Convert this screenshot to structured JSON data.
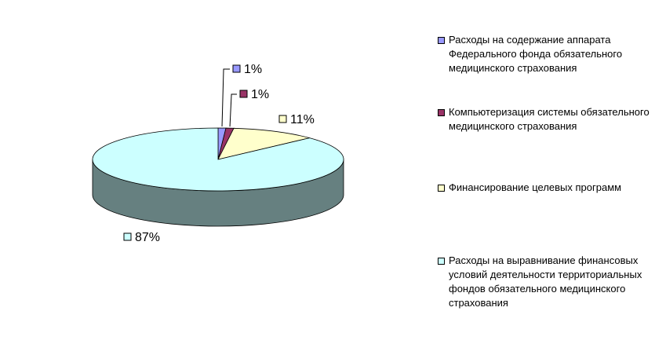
{
  "chart_data": {
    "type": "pie",
    "categories": [
      "Расходы на содержание аппарата Федерального фонда обязательного медицинского страхования",
      "Компьютеризация системы обязательного медицинского страхования",
      "Финансирование целевых программ",
      "Расходы на выравнивание финансовых условий деятельности территориальных фондов обязательного медицинского страхования"
    ],
    "values": [
      1,
      1,
      11,
      87
    ],
    "value_labels": [
      "1%",
      "1%",
      "11%",
      "87%"
    ],
    "colors": [
      "#9999ff",
      "#993366",
      "#ffffcc",
      "#ccffff"
    ],
    "legend": "right"
  }
}
